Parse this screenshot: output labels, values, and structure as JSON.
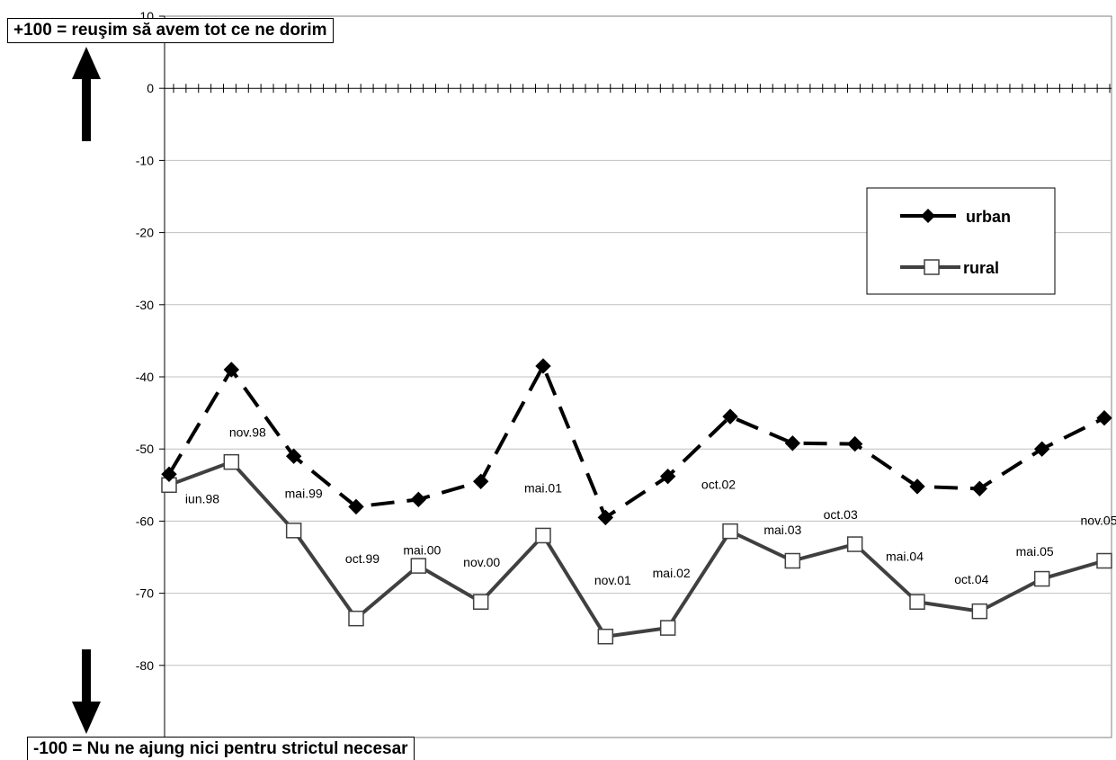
{
  "annotations": {
    "top": "+100 = reuşim să avem tot ce ne dorim",
    "bottom": "-100 = Nu ne ajung nici pentru strictul necesar"
  },
  "chart_data": {
    "type": "line",
    "title": "",
    "xlabel": "",
    "ylabel": "",
    "ylim": [
      -90,
      10
    ],
    "y_ticks": [
      10,
      0,
      -10,
      -20,
      -30,
      -40,
      -50,
      -60,
      -70,
      -80
    ],
    "grid": true,
    "legend": "right",
    "categories": [
      "iun.98",
      "nov.98",
      "mai.99",
      "oct.99",
      "mai.00",
      "nov.00",
      "mai.01",
      "nov.01",
      "mai.02",
      "oct.02",
      "mai.03",
      "oct.03",
      "mai.04",
      "oct.04",
      "mai.05",
      "nov.05"
    ],
    "series": [
      {
        "name": "urban",
        "color": "#000000",
        "marker": "diamond",
        "dash": "dashed",
        "values": [
          -53.5,
          -39,
          -51,
          -58,
          -57,
          -54.5,
          -38.5,
          -59.5,
          -53.8,
          -45.5,
          -49.2,
          -49.3,
          -55.2,
          -55.5,
          -50,
          -45.7
        ]
      },
      {
        "name": "rural",
        "color": "#404040",
        "marker": "square",
        "dash": "solid",
        "values": [
          -55,
          -51.8,
          -61.3,
          -73.5,
          -66.2,
          -71.2,
          -62,
          -76,
          -74.8,
          -61.4,
          -65.5,
          -63.2,
          -71.2,
          -72.5,
          -68,
          -65.5
        ]
      }
    ]
  }
}
